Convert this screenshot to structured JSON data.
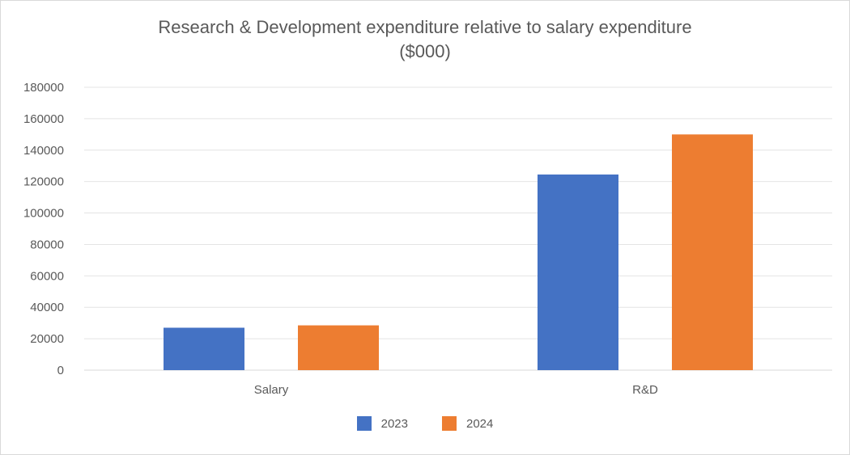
{
  "chart_data": {
    "type": "bar",
    "title_line1": "Research & Development expenditure relative to salary expenditure",
    "title_line2": "($000)",
    "categories": [
      "Salary",
      "R&D"
    ],
    "series": [
      {
        "name": "2023",
        "color": "#4472C4",
        "values": [
          27000,
          124500
        ]
      },
      {
        "name": "2024",
        "color": "#ED7D31",
        "values": [
          28500,
          150000
        ]
      }
    ],
    "xlabel": "",
    "ylabel": "",
    "ylim": [
      0,
      180000
    ],
    "yticks": [
      "0",
      "20000",
      "40000",
      "60000",
      "80000",
      "100000",
      "120000",
      "140000",
      "160000",
      "180000"
    ],
    "grid": true,
    "legend_position": "bottom"
  }
}
